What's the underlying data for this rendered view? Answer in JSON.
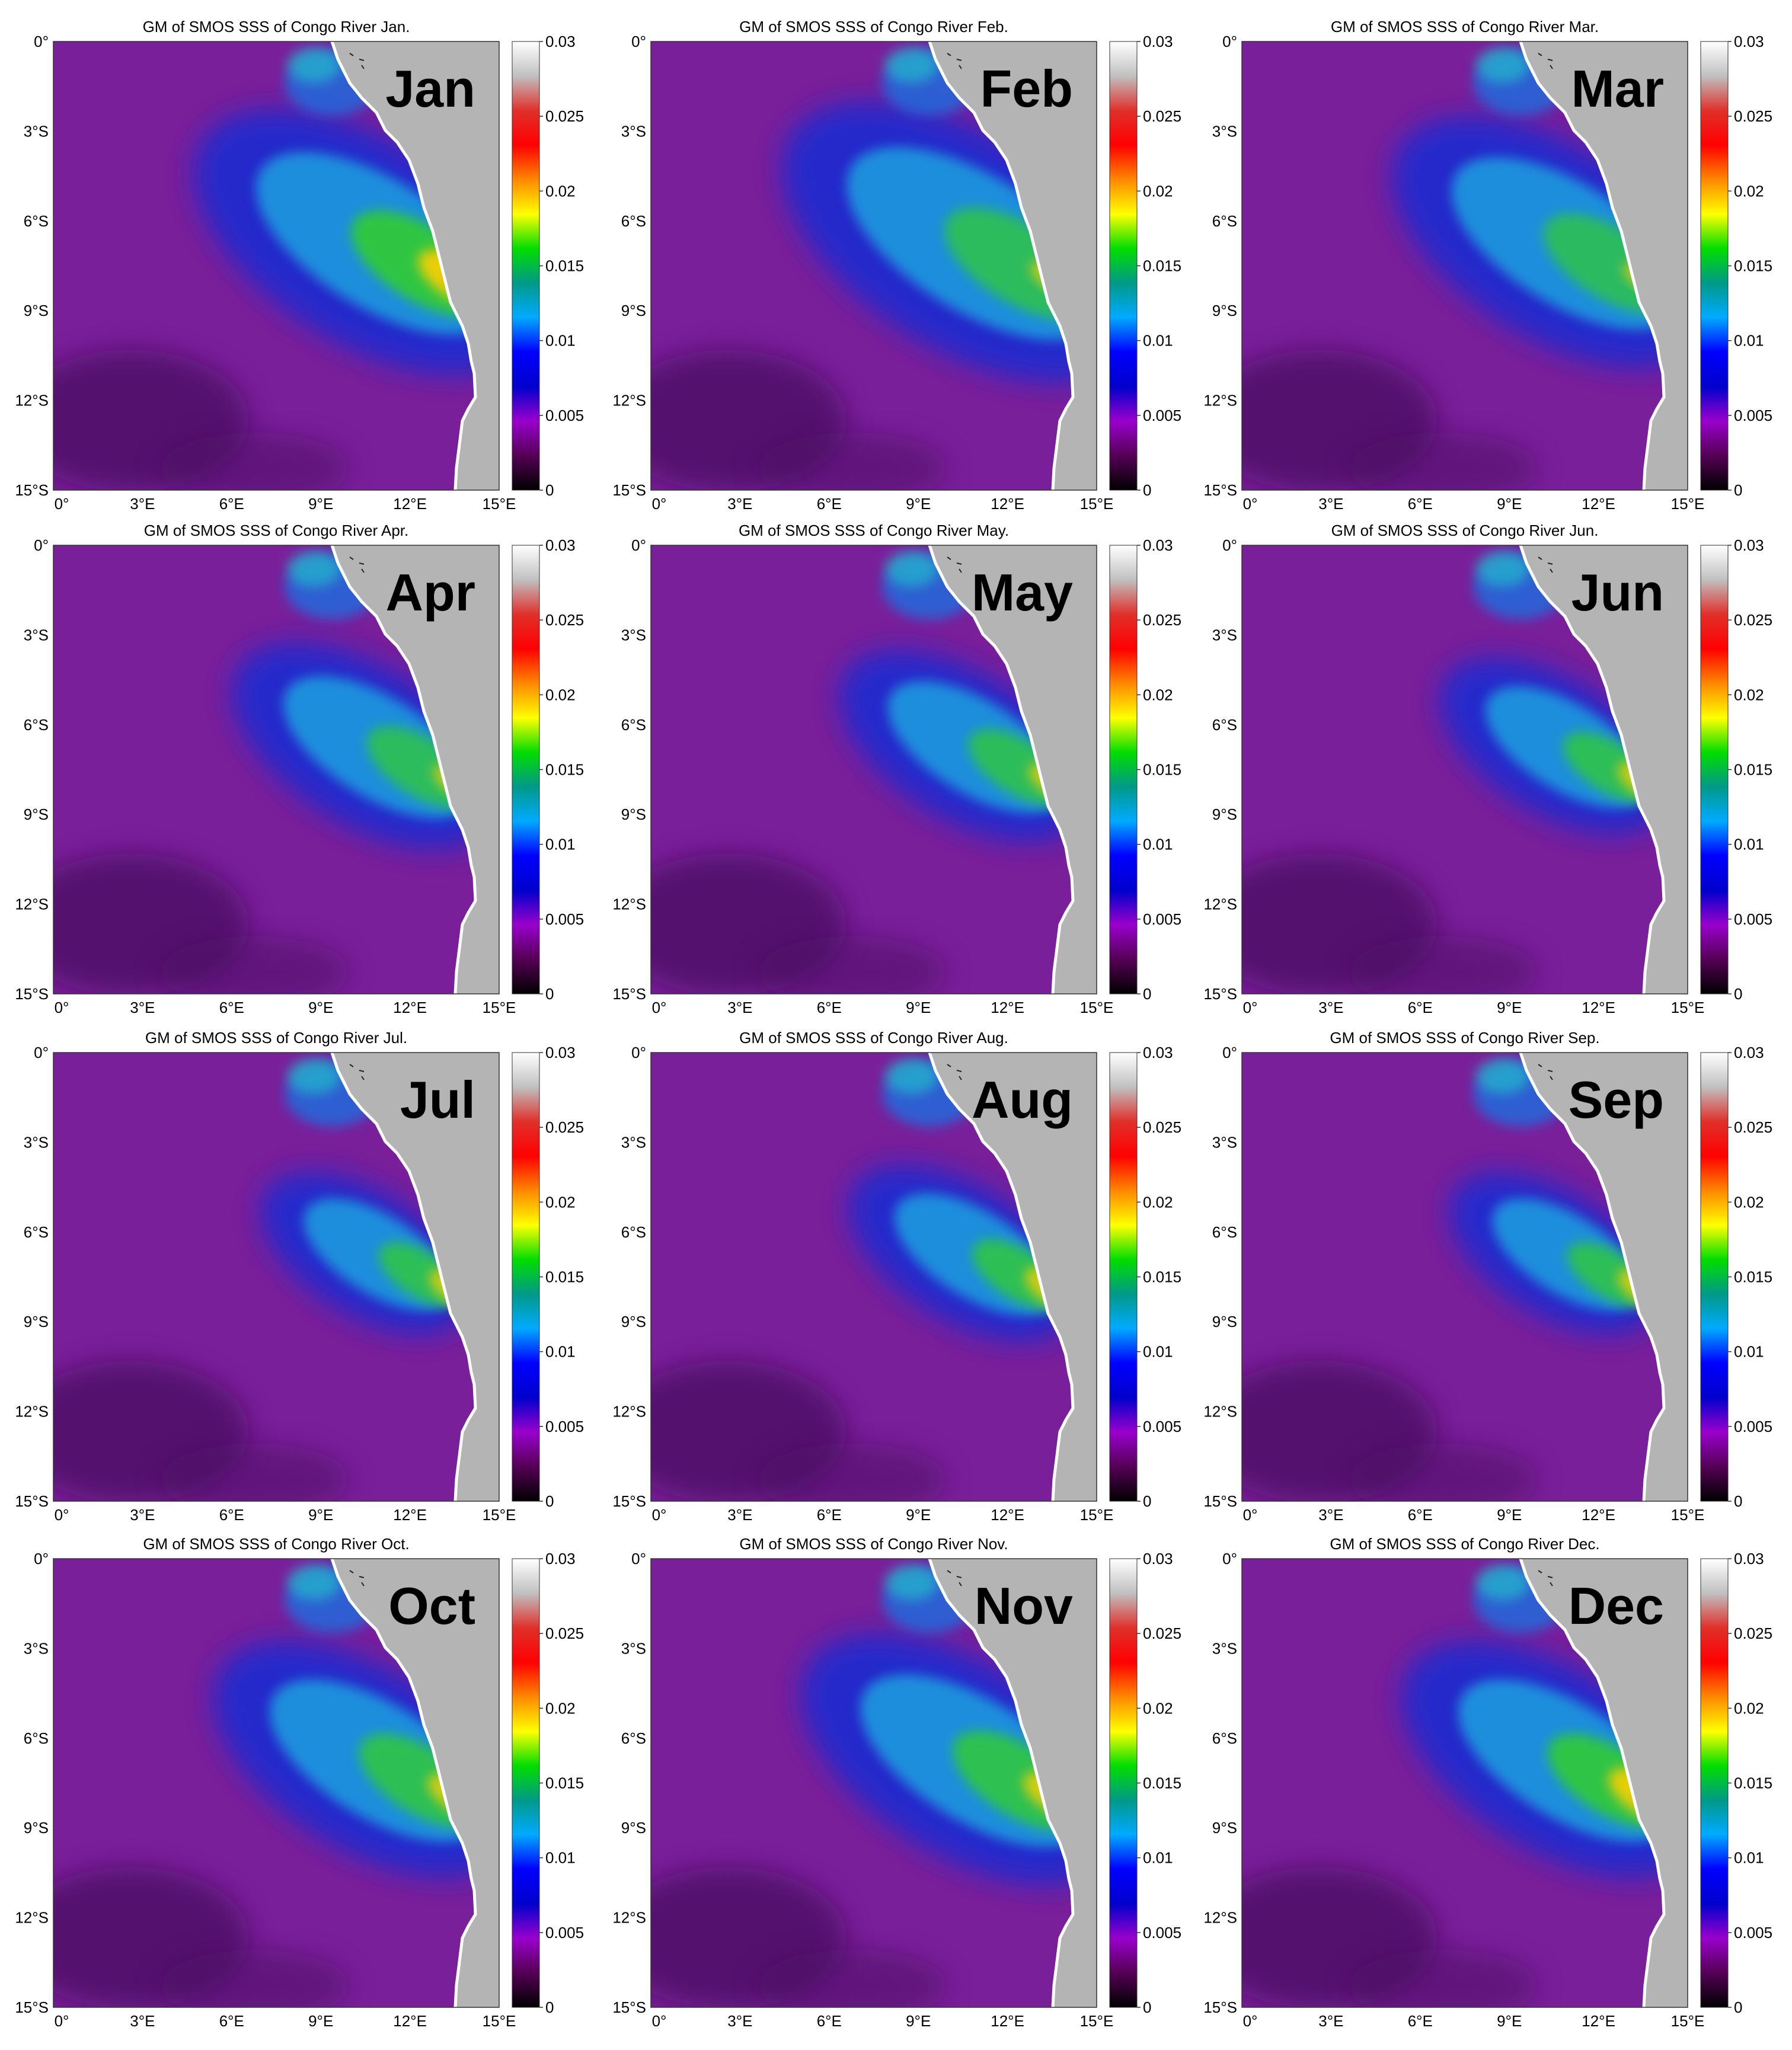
{
  "figure": {
    "axes": {
      "lat_labels": [
        "0°",
        "3°S",
        "6°S",
        "9°S",
        "12°S",
        "15°S"
      ],
      "lon_labels": [
        "0°",
        "3°E",
        "6°E",
        "9°E",
        "12°E",
        "15°E"
      ]
    },
    "colorbar": {
      "ticks": [
        "0.03",
        "0.025",
        "0.02",
        "0.015",
        "0.01",
        "0.005",
        "0"
      ],
      "stops": [
        "#ffffff",
        "#c0c0c0",
        "#e0302a",
        "#ff0000",
        "#ff8800",
        "#ffff00",
        "#00dd00",
        "#009988",
        "#00aaff",
        "#0000ff",
        "#0000cc",
        "#9900cc",
        "#550055",
        "#000000"
      ]
    },
    "colors": {
      "ocean": "#7a1f9a",
      "ocean_dark": "#4a1060",
      "land": "#b4b4b4",
      "coast": "#ffffff",
      "label": "#000000"
    },
    "panels": [
      {
        "title": "GM of SMOS SSS of Congo River Jan.",
        "month": "Jan",
        "plume_extent": 0.9,
        "core_intensity": 1.0
      },
      {
        "title": "GM of SMOS SSS of Congo River Feb.",
        "month": "Feb",
        "plume_extent": 0.95,
        "core_intensity": 0.6
      },
      {
        "title": "GM of SMOS SSS of Congo River Mar.",
        "month": "Mar",
        "plume_extent": 0.85,
        "core_intensity": 0.55
      },
      {
        "title": "GM of SMOS SSS of Congo River Apr.",
        "month": "Apr",
        "plume_extent": 0.7,
        "core_intensity": 0.6
      },
      {
        "title": "GM of SMOS SSS of Congo River May.",
        "month": "May",
        "plume_extent": 0.65,
        "core_intensity": 0.65
      },
      {
        "title": "GM of SMOS SSS of Congo River Jun.",
        "month": "Jun",
        "plume_extent": 0.6,
        "core_intensity": 0.7
      },
      {
        "title": "GM of SMOS SSS of Congo River Jul.",
        "month": "Jul",
        "plume_extent": 0.55,
        "core_intensity": 0.7
      },
      {
        "title": "GM of SMOS SSS of Congo River Aug.",
        "month": "Aug",
        "plume_extent": 0.6,
        "core_intensity": 0.75
      },
      {
        "title": "GM of SMOS SSS of Congo River Sep.",
        "month": "Sep",
        "plume_extent": 0.55,
        "core_intensity": 0.7
      },
      {
        "title": "GM of SMOS SSS of Congo River Oct.",
        "month": "Oct",
        "plume_extent": 0.8,
        "core_intensity": 0.75
      },
      {
        "title": "GM of SMOS SSS of Congo River Nov.",
        "month": "Nov",
        "plume_extent": 0.85,
        "core_intensity": 0.8
      },
      {
        "title": "GM of SMOS SSS of Congo River Dec.",
        "month": "Dec",
        "plume_extent": 0.8,
        "core_intensity": 0.95
      }
    ]
  }
}
